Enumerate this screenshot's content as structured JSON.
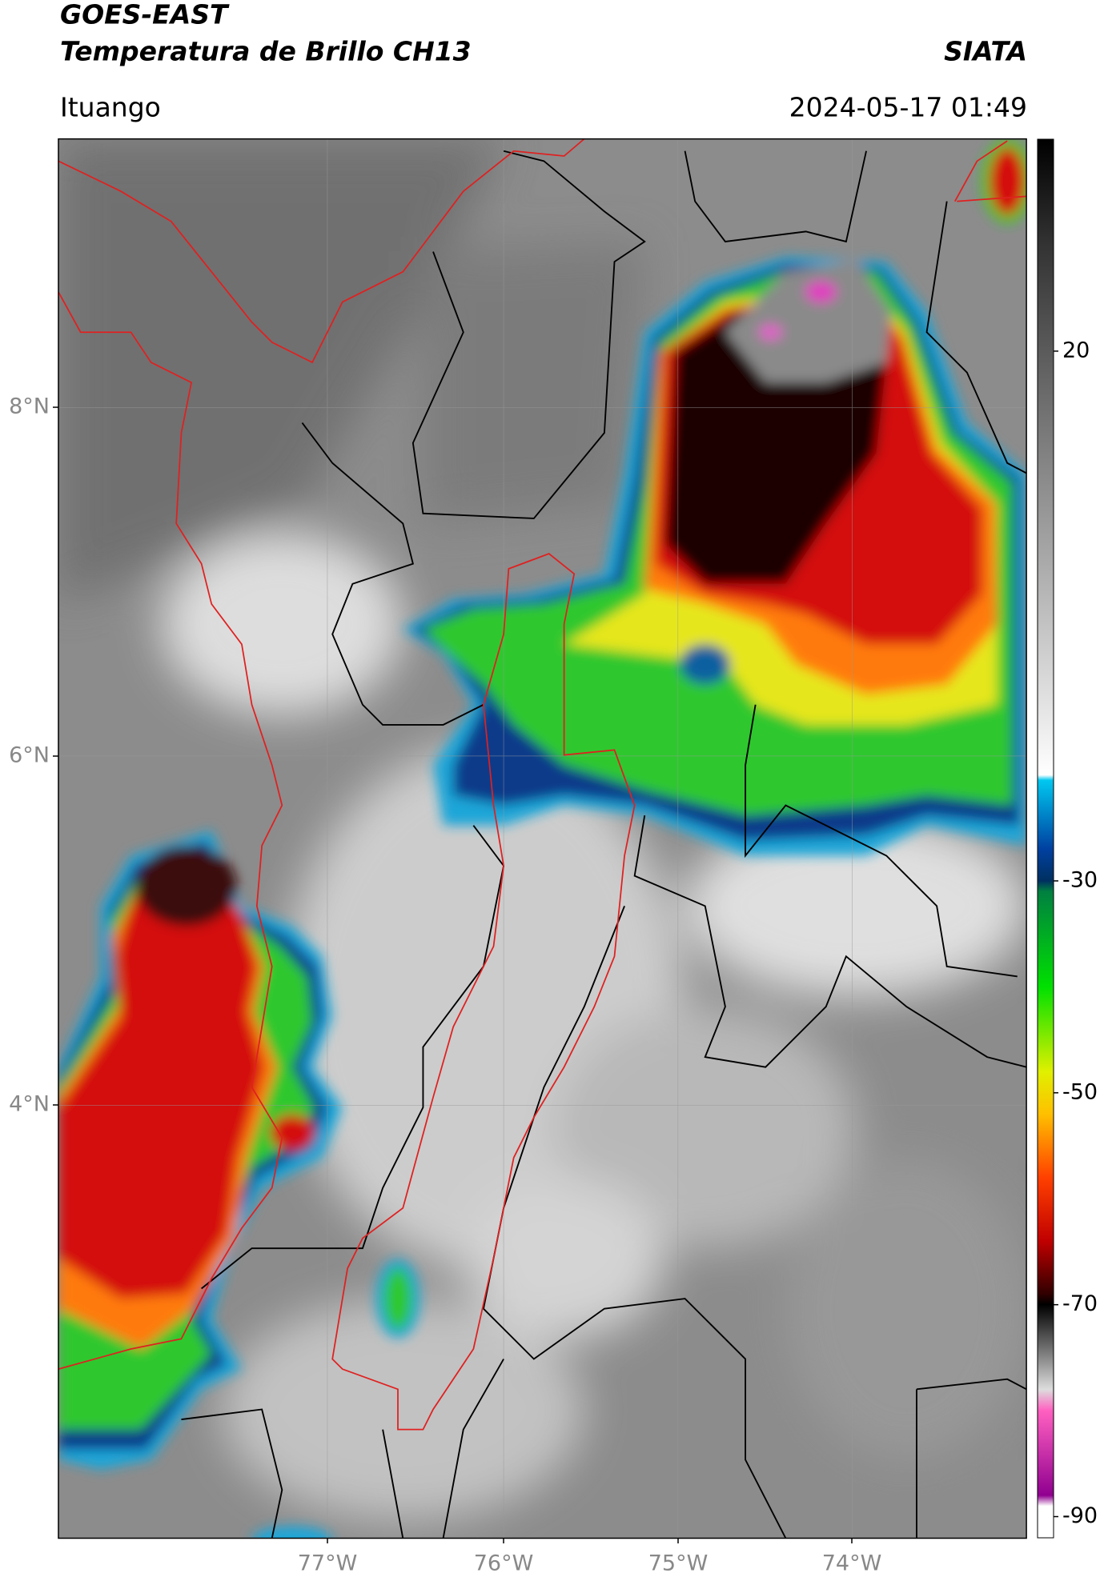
{
  "header": {
    "title": "GOES-EAST",
    "subtitle": "Temperatura de Brillo CH13",
    "brand": "SIATA",
    "location": "Ituango",
    "datetime": "2024-05-17 01:49"
  },
  "map": {
    "lat_labels": [
      "8°N",
      "6°N",
      "4°N"
    ],
    "lon_labels": [
      "77°W",
      "76°W",
      "75°W",
      "74°W"
    ]
  },
  "colorbar": {
    "lim": [
      -92,
      40
    ],
    "ticks": [
      20,
      -30,
      -50,
      -70,
      -90
    ]
  }
}
